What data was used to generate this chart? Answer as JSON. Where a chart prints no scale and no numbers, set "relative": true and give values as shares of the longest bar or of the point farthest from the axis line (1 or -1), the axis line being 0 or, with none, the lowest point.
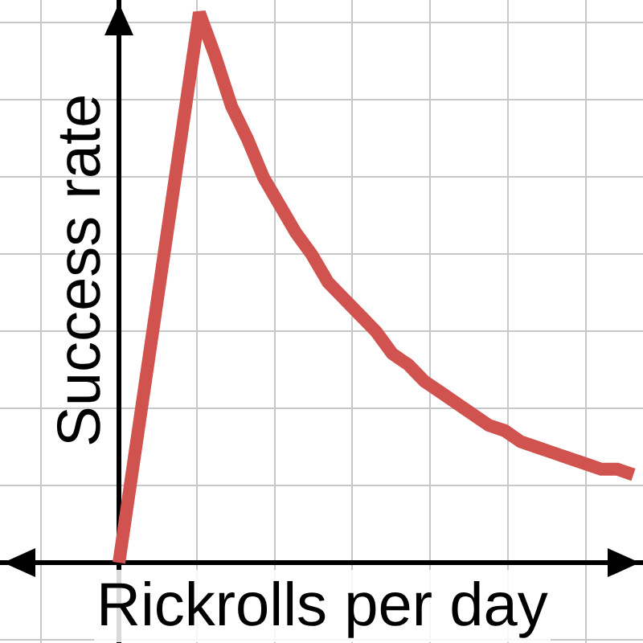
{
  "chart_data": {
    "type": "line",
    "xlabel": "Rickrolls per day",
    "ylabel": "Success rate",
    "relative": true,
    "grid": true,
    "tick_labels": false,
    "categories": [
      null,
      null,
      null,
      null,
      null,
      null,
      null,
      null,
      null,
      null,
      null,
      null,
      null,
      null,
      null,
      null,
      null,
      null,
      null,
      null,
      null,
      null,
      null,
      null,
      null,
      null,
      null,
      null,
      null,
      null,
      null,
      null,
      null
    ],
    "series": [
      {
        "color": "#d1534f",
        "values": [
          0,
          0.2,
          0.4,
          0.6,
          0.8,
          1,
          0.92,
          0.83,
          0.77,
          0.7,
          0.65,
          0.6,
          0.56,
          0.51,
          0.48,
          0.45,
          0.42,
          0.38,
          0.36,
          0.33,
          0.31,
          0.29,
          0.27,
          0.25,
          0.24,
          0.22,
          0.21,
          0.2,
          0.19,
          0.18,
          0.17,
          0.17,
          0.16
        ]
      }
    ]
  }
}
